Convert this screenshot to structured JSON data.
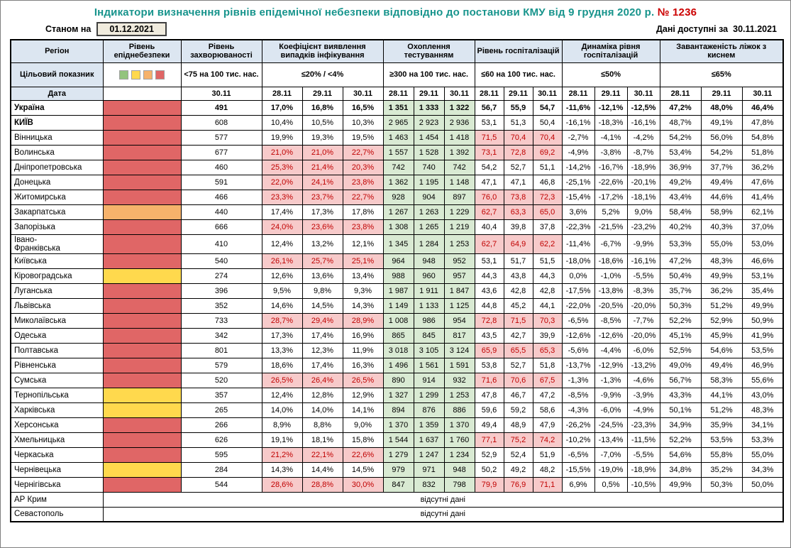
{
  "title": {
    "main": "Індикатори визначення рівнів епідемічної небезпеки відповідно до постанови КМУ від 9 грудня 2020 р.",
    "number": "№ 1236"
  },
  "topbar": {
    "as_of_label": "Станом на",
    "as_of_date": "01.12.2021",
    "available_label": "Дані доступні за",
    "available_date": "30.11.2021"
  },
  "colors": {
    "title": "#17948c",
    "title-number": "#cc0000",
    "header-blue": "#dce6f1",
    "date-box-bg": "#f0ebdd",
    "good-green-bg": "#d9ead3",
    "bad-pink-bg": "#f7caca",
    "bad-red-text": "#c00000"
  },
  "table": {
    "corner": {
      "region": "Регіон",
      "target": "Цільовий показник",
      "date": "Дата"
    },
    "groups": {
      "level": {
        "label": "Рівень епіднебезпеки"
      },
      "incidence": {
        "label": "Рівень захворюваності",
        "target": "<75 на 100 тис. нас.",
        "dates": [
          "30.11"
        ]
      },
      "detection": {
        "label": "Коефіцієнт виявлення випадків інфікування",
        "target": "≤20% / <4%",
        "dates": [
          "28.11",
          "29.11",
          "30.11"
        ]
      },
      "testing": {
        "label": "Охоплення тестуванням",
        "target": "≥300 на 100 тис. нас.",
        "dates": [
          "28.11",
          "29.11",
          "30.11"
        ]
      },
      "hosp": {
        "label": "Рівень госпіталізацій",
        "target": "≤60 на 100 тис. нас.",
        "dates": [
          "28.11",
          "29.11",
          "30.11"
        ]
      },
      "dynamics": {
        "label": "Динаміка рівня госпіталізацій",
        "target": "≤50%",
        "dates": [
          "28.11",
          "29.11",
          "30.11"
        ]
      },
      "beds": {
        "label": "Завантаженість ліжок з киснем",
        "target": "≤65%",
        "dates": [
          "28.11",
          "29.11",
          "30.11"
        ]
      }
    },
    "legend_colors": [
      "#93c47d",
      "#ffd94d",
      "#f6b26b",
      "#e06666"
    ],
    "level_colors": {
      "green": "#93c47d",
      "yellow": "#ffd94d",
      "orange": "#f6b26b",
      "red": "#e06666"
    },
    "thresholds": {
      "detection_max": 20,
      "testing_min": 300,
      "hosp_max": 60,
      "dynamics_max": 50,
      "beds_max": 65
    },
    "no_data_text": "відсутні дані"
  },
  "rows": [
    {
      "region": "Україна",
      "bold": true,
      "level": "red",
      "incidence": "491",
      "detection": [
        "17,0%",
        "16,8%",
        "16,5%"
      ],
      "testing": [
        "1 351",
        "1 333",
        "1 322"
      ],
      "hosp": [
        "56,7",
        "55,9",
        "54,7"
      ],
      "dynamics": [
        "-11,6%",
        "-12,1%",
        "-12,5%"
      ],
      "beds": [
        "47,2%",
        "48,0%",
        "46,4%"
      ]
    },
    {
      "region": "КИЇВ",
      "name_bold": true,
      "level": "red",
      "incidence": "608",
      "detection": [
        "10,4%",
        "10,5%",
        "10,3%"
      ],
      "testing": [
        "2 965",
        "2 923",
        "2 936"
      ],
      "hosp": [
        "53,1",
        "51,3",
        "50,4"
      ],
      "dynamics": [
        "-16,1%",
        "-18,3%",
        "-16,1%"
      ],
      "beds": [
        "48,7%",
        "49,1%",
        "47,8%"
      ]
    },
    {
      "region": "Вінницька",
      "level": "red",
      "incidence": "577",
      "detection": [
        "19,9%",
        "19,3%",
        "19,5%"
      ],
      "testing": [
        "1 463",
        "1 454",
        "1 418"
      ],
      "hosp": [
        "71,5",
        "70,4",
        "70,4"
      ],
      "dynamics": [
        "-2,7%",
        "-4,1%",
        "-4,2%"
      ],
      "beds": [
        "54,2%",
        "56,0%",
        "54,8%"
      ]
    },
    {
      "region": "Волинська",
      "level": "red",
      "incidence": "677",
      "detection": [
        "21,0%",
        "21,0%",
        "22,7%"
      ],
      "testing": [
        "1 557",
        "1 528",
        "1 392"
      ],
      "hosp": [
        "73,1",
        "72,8",
        "69,2"
      ],
      "dynamics": [
        "-4,9%",
        "-3,8%",
        "-8,7%"
      ],
      "beds": [
        "53,4%",
        "54,2%",
        "51,8%"
      ]
    },
    {
      "region": "Дніпропетровська",
      "level": "red",
      "incidence": "460",
      "detection": [
        "25,3%",
        "21,4%",
        "20,3%"
      ],
      "testing": [
        "742",
        "740",
        "742"
      ],
      "hosp": [
        "54,2",
        "52,7",
        "51,1"
      ],
      "dynamics": [
        "-14,2%",
        "-16,7%",
        "-18,9%"
      ],
      "beds": [
        "36,9%",
        "37,7%",
        "36,2%"
      ]
    },
    {
      "region": "Донецька",
      "level": "red",
      "incidence": "591",
      "detection": [
        "22,0%",
        "24,1%",
        "23,8%"
      ],
      "testing": [
        "1 362",
        "1 195",
        "1 148"
      ],
      "hosp": [
        "47,1",
        "47,1",
        "46,8"
      ],
      "dynamics": [
        "-25,1%",
        "-22,6%",
        "-20,1%"
      ],
      "beds": [
        "49,2%",
        "49,4%",
        "47,6%"
      ]
    },
    {
      "region": "Житомирська",
      "level": "red",
      "incidence": "466",
      "detection": [
        "23,3%",
        "23,7%",
        "22,7%"
      ],
      "testing": [
        "928",
        "904",
        "897"
      ],
      "hosp": [
        "76,0",
        "73,8",
        "72,3"
      ],
      "dynamics": [
        "-15,4%",
        "-17,2%",
        "-18,1%"
      ],
      "beds": [
        "43,4%",
        "44,6%",
        "41,4%"
      ]
    },
    {
      "region": "Закарпатська",
      "level": "orange",
      "incidence": "440",
      "detection": [
        "17,4%",
        "17,3%",
        "17,8%"
      ],
      "testing": [
        "1 267",
        "1 263",
        "1 229"
      ],
      "hosp": [
        "62,7",
        "63,3",
        "65,0"
      ],
      "dynamics": [
        "3,6%",
        "5,2%",
        "9,0%"
      ],
      "beds": [
        "58,4%",
        "58,9%",
        "62,1%"
      ]
    },
    {
      "region": "Запорізька",
      "level": "red",
      "incidence": "666",
      "detection": [
        "24,0%",
        "23,6%",
        "23,8%"
      ],
      "testing": [
        "1 308",
        "1 265",
        "1 219"
      ],
      "hosp": [
        "40,4",
        "39,8",
        "37,8"
      ],
      "dynamics": [
        "-22,3%",
        "-21,5%",
        "-23,2%"
      ],
      "beds": [
        "40,2%",
        "40,3%",
        "37,0%"
      ]
    },
    {
      "region": "Івано-\nФранківська",
      "level": "red",
      "incidence": "410",
      "detection": [
        "12,4%",
        "13,2%",
        "12,1%"
      ],
      "testing": [
        "1 345",
        "1 284",
        "1 253"
      ],
      "hosp": [
        "62,7",
        "64,9",
        "62,2"
      ],
      "dynamics": [
        "-11,4%",
        "-6,7%",
        "-9,9%"
      ],
      "beds": [
        "53,3%",
        "55,0%",
        "53,0%"
      ]
    },
    {
      "region": "Київська",
      "level": "red",
      "incidence": "540",
      "detection": [
        "26,1%",
        "25,7%",
        "25,1%"
      ],
      "testing": [
        "964",
        "948",
        "952"
      ],
      "hosp": [
        "53,1",
        "51,7",
        "51,5"
      ],
      "dynamics": [
        "-18,0%",
        "-18,6%",
        "-16,1%"
      ],
      "beds": [
        "47,2%",
        "48,3%",
        "46,6%"
      ]
    },
    {
      "region": "Кіровоградська",
      "level": "yellow",
      "incidence": "274",
      "detection": [
        "12,6%",
        "13,6%",
        "13,4%"
      ],
      "testing": [
        "988",
        "960",
        "957"
      ],
      "hosp": [
        "44,3",
        "43,8",
        "44,3"
      ],
      "dynamics": [
        "0,0%",
        "-1,0%",
        "-5,5%"
      ],
      "beds": [
        "50,4%",
        "49,9%",
        "53,1%"
      ]
    },
    {
      "region": "Луганська",
      "level": "red",
      "incidence": "396",
      "detection": [
        "9,5%",
        "9,8%",
        "9,3%"
      ],
      "testing": [
        "1 987",
        "1 911",
        "1 847"
      ],
      "hosp": [
        "43,6",
        "42,8",
        "42,8"
      ],
      "dynamics": [
        "-17,5%",
        "-13,8%",
        "-8,3%"
      ],
      "beds": [
        "35,7%",
        "36,2%",
        "35,4%"
      ]
    },
    {
      "region": "Львівська",
      "level": "red",
      "incidence": "352",
      "detection": [
        "14,6%",
        "14,5%",
        "14,3%"
      ],
      "testing": [
        "1 149",
        "1 133",
        "1 125"
      ],
      "hosp": [
        "44,8",
        "45,2",
        "44,1"
      ],
      "dynamics": [
        "-22,0%",
        "-20,5%",
        "-20,0%"
      ],
      "beds": [
        "50,3%",
        "51,2%",
        "49,9%"
      ]
    },
    {
      "region": "Миколаївська",
      "level": "red",
      "incidence": "733",
      "detection": [
        "28,7%",
        "29,4%",
        "28,9%"
      ],
      "testing": [
        "1 008",
        "986",
        "954"
      ],
      "hosp": [
        "72,8",
        "71,5",
        "70,3"
      ],
      "dynamics": [
        "-6,5%",
        "-8,5%",
        "-7,7%"
      ],
      "beds": [
        "52,2%",
        "52,9%",
        "50,9%"
      ]
    },
    {
      "region": "Одеська",
      "level": "red",
      "incidence": "342",
      "detection": [
        "17,3%",
        "17,4%",
        "16,9%"
      ],
      "testing": [
        "865",
        "845",
        "817"
      ],
      "hosp": [
        "43,5",
        "42,7",
        "39,9"
      ],
      "dynamics": [
        "-12,6%",
        "-12,6%",
        "-20,0%"
      ],
      "beds": [
        "45,1%",
        "45,9%",
        "41,9%"
      ]
    },
    {
      "region": "Полтавська",
      "level": "red",
      "incidence": "801",
      "detection": [
        "13,3%",
        "12,3%",
        "11,9%"
      ],
      "testing": [
        "3 018",
        "3 105",
        "3 124"
      ],
      "hosp": [
        "65,9",
        "65,5",
        "65,3"
      ],
      "dynamics": [
        "-5,6%",
        "-4,4%",
        "-6,0%"
      ],
      "beds": [
        "52,5%",
        "54,6%",
        "53,5%"
      ]
    },
    {
      "region": "Рівненська",
      "level": "red",
      "incidence": "579",
      "detection": [
        "18,6%",
        "17,4%",
        "16,3%"
      ],
      "testing": [
        "1 496",
        "1 561",
        "1 591"
      ],
      "hosp": [
        "53,8",
        "52,7",
        "51,8"
      ],
      "dynamics": [
        "-13,7%",
        "-12,9%",
        "-13,2%"
      ],
      "beds": [
        "49,0%",
        "49,4%",
        "46,9%"
      ]
    },
    {
      "region": "Сумська",
      "level": "red",
      "incidence": "520",
      "detection": [
        "26,5%",
        "26,4%",
        "26,5%"
      ],
      "testing": [
        "890",
        "914",
        "932"
      ],
      "hosp": [
        "71,6",
        "70,6",
        "67,5"
      ],
      "dynamics": [
        "-1,3%",
        "-1,3%",
        "-4,6%"
      ],
      "beds": [
        "56,7%",
        "58,3%",
        "55,6%"
      ]
    },
    {
      "region": "Тернопільська",
      "level": "yellow",
      "incidence": "357",
      "detection": [
        "12,4%",
        "12,8%",
        "12,9%"
      ],
      "testing": [
        "1 327",
        "1 299",
        "1 253"
      ],
      "hosp": [
        "47,8",
        "46,7",
        "47,2"
      ],
      "dynamics": [
        "-8,5%",
        "-9,9%",
        "-3,9%"
      ],
      "beds": [
        "43,3%",
        "44,1%",
        "43,0%"
      ]
    },
    {
      "region": "Харківська",
      "level": "yellow",
      "incidence": "265",
      "detection": [
        "14,0%",
        "14,0%",
        "14,1%"
      ],
      "testing": [
        "894",
        "876",
        "886"
      ],
      "hosp": [
        "59,6",
        "59,2",
        "58,6"
      ],
      "dynamics": [
        "-4,3%",
        "-6,0%",
        "-4,9%"
      ],
      "beds": [
        "50,1%",
        "51,2%",
        "48,3%"
      ]
    },
    {
      "region": "Херсонська",
      "level": "red",
      "incidence": "266",
      "detection": [
        "8,9%",
        "8,8%",
        "9,0%"
      ],
      "testing": [
        "1 370",
        "1 359",
        "1 370"
      ],
      "hosp": [
        "49,4",
        "48,9",
        "47,9"
      ],
      "dynamics": [
        "-26,2%",
        "-24,5%",
        "-23,3%"
      ],
      "beds": [
        "34,9%",
        "35,9%",
        "34,1%"
      ]
    },
    {
      "region": "Хмельницька",
      "level": "red",
      "incidence": "626",
      "detection": [
        "19,1%",
        "18,1%",
        "15,8%"
      ],
      "testing": [
        "1 544",
        "1 637",
        "1 760"
      ],
      "hosp": [
        "77,1",
        "75,2",
        "74,2"
      ],
      "dynamics": [
        "-10,2%",
        "-13,4%",
        "-11,5%"
      ],
      "beds": [
        "52,2%",
        "53,5%",
        "53,3%"
      ]
    },
    {
      "region": "Черкаська",
      "level": "red",
      "incidence": "595",
      "detection": [
        "21,2%",
        "22,1%",
        "22,6%"
      ],
      "testing": [
        "1 279",
        "1 247",
        "1 234"
      ],
      "hosp": [
        "52,9",
        "52,4",
        "51,9"
      ],
      "dynamics": [
        "-6,5%",
        "-7,0%",
        "-5,5%"
      ],
      "beds": [
        "54,6%",
        "55,8%",
        "55,0%"
      ]
    },
    {
      "region": "Чернівецька",
      "level": "yellow",
      "incidence": "284",
      "detection": [
        "14,3%",
        "14,4%",
        "14,5%"
      ],
      "testing": [
        "979",
        "971",
        "948"
      ],
      "hosp": [
        "50,2",
        "49,2",
        "48,2"
      ],
      "dynamics": [
        "-15,5%",
        "-19,0%",
        "-18,9%"
      ],
      "beds": [
        "34,8%",
        "35,2%",
        "34,3%"
      ]
    },
    {
      "region": "Чернігівська",
      "level": "red",
      "incidence": "544",
      "detection": [
        "28,6%",
        "28,8%",
        "30,0%"
      ],
      "testing": [
        "847",
        "832",
        "798"
      ],
      "hosp": [
        "79,9",
        "76,9",
        "71,1"
      ],
      "dynamics": [
        "6,9%",
        "0,5%",
        "-10,5%"
      ],
      "beds": [
        "49,9%",
        "50,3%",
        "50,0%"
      ]
    },
    {
      "region": "АР Крим",
      "no_data": true
    },
    {
      "region": "Севастополь",
      "no_data": true
    }
  ]
}
